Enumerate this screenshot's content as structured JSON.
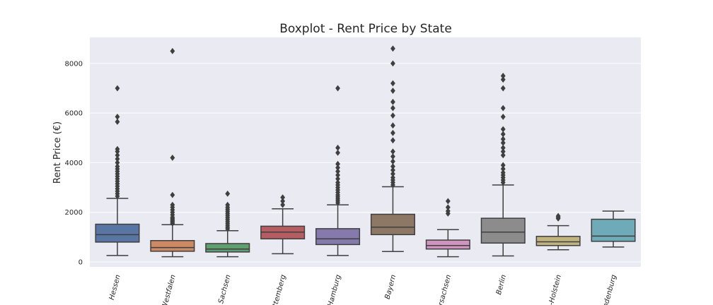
{
  "chart_data": {
    "type": "boxplot",
    "title": "Boxplot - Rent Price by State",
    "xlabel": "",
    "ylabel": "Rent Price (€)",
    "ylim": [
      -200,
      9050
    ],
    "yticks": [
      0,
      2000,
      4000,
      6000,
      8000
    ],
    "grid": true,
    "categories": [
      "Hessen",
      "Westfalen",
      "Sachsen",
      "ttemberg",
      "Hamburg",
      "Bayern",
      "rsachsen",
      "Berlin",
      "-Holstein",
      "ndenburg"
    ],
    "colors": [
      "#5975a4",
      "#cc8963",
      "#5f9e6e",
      "#b55d60",
      "#857aab",
      "#8d7866",
      "#d095bf",
      "#8c8c8c",
      "#c1b37f",
      "#6eaab8"
    ],
    "boxes": [
      {
        "whislo": 260,
        "q1": 800,
        "med": 1100,
        "q3": 1520,
        "whishi": 2560,
        "fliers": [
          2650,
          2750,
          2850,
          2950,
          3050,
          3150,
          3250,
          3350,
          3450,
          3550,
          3650,
          3750,
          3850,
          4000,
          4150,
          4300,
          4450,
          4550,
          5650,
          5850,
          7000
        ]
      },
      {
        "whislo": 210,
        "q1": 430,
        "med": 580,
        "q3": 860,
        "whishi": 1500,
        "fliers": [
          1550,
          1600,
          1650,
          1700,
          1750,
          1800,
          1900,
          2000,
          2100,
          2200,
          2300,
          2700,
          4200,
          8500
        ]
      },
      {
        "whislo": 210,
        "q1": 400,
        "med": 520,
        "q3": 740,
        "whishi": 1260,
        "fliers": [
          1330,
          1400,
          1480,
          1560,
          1640,
          1720,
          1800,
          1880,
          1960,
          2040,
          2120,
          2200,
          2300,
          2750
        ]
      },
      {
        "whislo": 330,
        "q1": 930,
        "med": 1200,
        "q3": 1440,
        "whishi": 2140,
        "fliers": [
          2300,
          2450,
          2600
        ]
      },
      {
        "whislo": 260,
        "q1": 700,
        "med": 930,
        "q3": 1340,
        "whishi": 2300,
        "fliers": [
          2380,
          2460,
          2540,
          2620,
          2700,
          2800,
          2900,
          3000,
          3100,
          3200,
          3350,
          3500,
          3650,
          3800,
          3950,
          4400,
          4600,
          7000
        ]
      },
      {
        "whislo": 420,
        "q1": 1100,
        "med": 1400,
        "q3": 1920,
        "whishi": 3030,
        "fliers": [
          3100,
          3200,
          3300,
          3400,
          3550,
          3700,
          3850,
          4050,
          4250,
          4450,
          4900,
          5200,
          5500,
          5900,
          6200,
          6450,
          6900,
          7200,
          8000,
          8600
        ]
      },
      {
        "whislo": 210,
        "q1": 520,
        "med": 660,
        "q3": 880,
        "whishi": 1300,
        "fliers": [
          1950,
          2050,
          2200,
          2450
        ]
      },
      {
        "whislo": 240,
        "q1": 760,
        "med": 1200,
        "q3": 1760,
        "whishi": 3100,
        "fliers": [
          3200,
          3300,
          3400,
          3500,
          3600,
          3750,
          3900,
          4300,
          4450,
          4600,
          4800,
          4950,
          5150,
          5350,
          5850,
          6200,
          7000,
          7350,
          7500
        ]
      },
      {
        "whislo": 490,
        "q1": 660,
        "med": 810,
        "q3": 1030,
        "whishi": 1460,
        "fliers": [
          1750,
          1800,
          1850
        ]
      },
      {
        "whislo": 600,
        "q1": 830,
        "med": 1040,
        "q3": 1720,
        "whishi": 2050,
        "fliers": []
      }
    ]
  }
}
